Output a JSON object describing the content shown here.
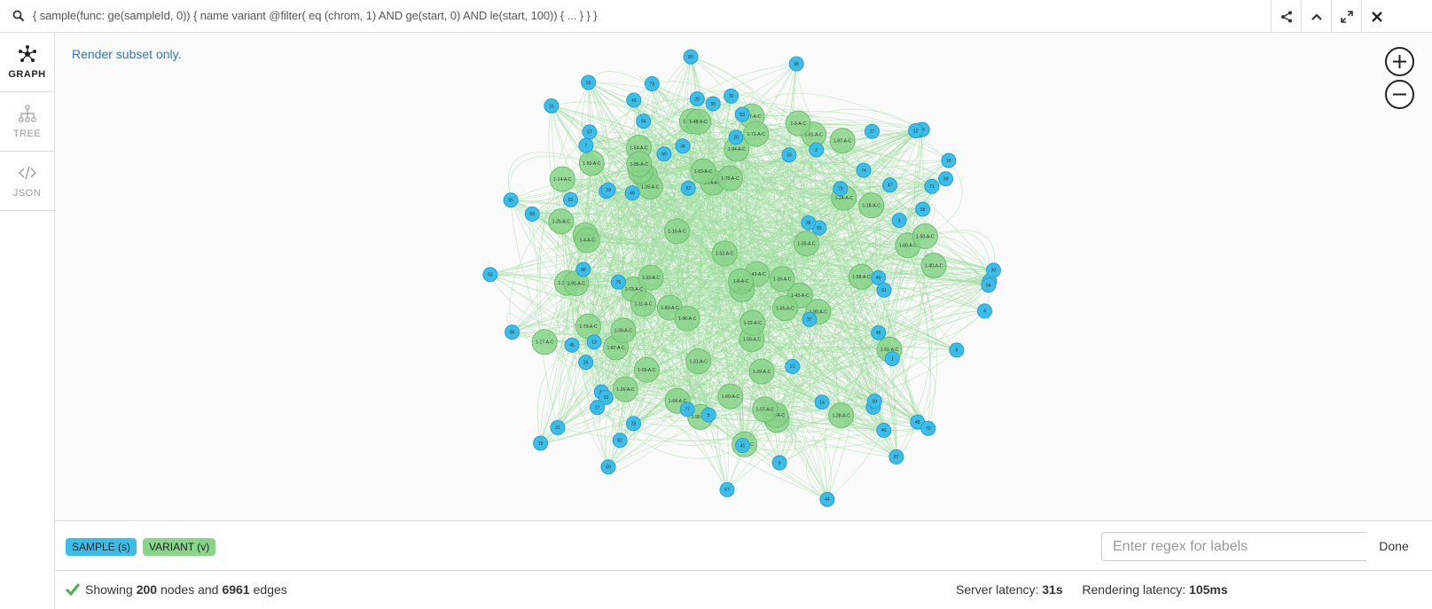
{
  "query": {
    "search_icon": "search-icon",
    "text": "{ sample(func: ge(sampleId, 0)) { name variant @filter( eq (chrom, 1) AND ge(start, 0) AND le(start, 100)) { ... } } }",
    "buttons": [
      "share-icon",
      "collapse-icon",
      "expand-icon",
      "close-icon"
    ]
  },
  "sidebar": {
    "tabs": [
      {
        "label": "GRAPH",
        "icon": "graph-icon"
      },
      {
        "label": "TREE",
        "icon": "tree-icon"
      },
      {
        "label": "JSON",
        "icon": "code-icon"
      }
    ]
  },
  "graph": {
    "notice": "Render subset only.",
    "colors": {
      "sample": "#3bbde9",
      "variant": "#88d489",
      "edge": "#9fdc9f"
    },
    "sample_labels": [
      "84",
      "77",
      "25",
      "69",
      "32",
      "43",
      "33",
      "31",
      "62",
      "56",
      "39",
      "66",
      "71",
      "57",
      "18",
      "24",
      "2",
      "14",
      "45",
      "58",
      "89",
      "46",
      "60",
      "13",
      "65",
      "19",
      "50",
      "88",
      "26",
      "27",
      "92",
      "11",
      "47",
      "17",
      "7",
      "63",
      "3",
      "34",
      "93",
      "23",
      "98",
      "48",
      "1",
      "21",
      "49",
      "68",
      "86",
      "87",
      "28",
      "54",
      "20",
      "61",
      "37",
      "29",
      "35",
      "99",
      "79",
      "10",
      "59",
      "64",
      "15",
      "4",
      "44",
      "55",
      "5",
      "9",
      "6",
      "73",
      "76",
      "75",
      "40",
      "38",
      "12",
      "30",
      "53",
      "67",
      "74",
      "41"
    ],
    "variant_labels": [
      "1-24-A-C",
      "1-26-A-C",
      "1-74-A-C",
      "1-93-A-C",
      "1-29-A-C",
      "1-40-A-C",
      "1-53-A-C",
      "1-30-A-C",
      "1-10-A-C",
      "1-38-A-C",
      "1-67-A-C",
      "1-73-A-C",
      "1-11-A-C",
      "1-21-A-C",
      "1-32-A-C",
      "1-75-A-C",
      "1-52-A-C",
      "1-64-A-C",
      "1-89-A-C",
      "1-31-A-C",
      "1-15-A-C",
      "1-51-A-C",
      "1-61-A-C",
      "1-18-A-C",
      "1-43-A-C",
      "1-84-A-C",
      "1-78-A-C",
      "1-42-A-C",
      "1-65-A-C",
      "1-82-A-C",
      "1-14-A-C",
      "1-56-A-C",
      "1-99-A-C",
      "1-80-A-C",
      "1-58-A-C",
      "1-54-A-C",
      "1-87-A-C",
      "1-90-A-C",
      "1-3-A-C",
      "1-28-A-C",
      "1-33-A-C",
      "1-57-A-C",
      "1-22-A-C",
      "1-95-A-C",
      "1-4-A-C",
      "1-16-A-C",
      "1-39-A-C",
      "1-8-A-C",
      "1-83-A-C",
      "1-23-A-C",
      "1-71-A-C",
      "1-17-A-C",
      "1-60-A-C",
      "1-41-A-C",
      "1-69-A-C",
      "1-91-A-C",
      "1-25-A-C",
      "1-86-A-C",
      "1-48-A-C",
      "1-97-A-C",
      "1-70-A-C",
      "1-50-A-C",
      "1-96-A-C"
    ]
  },
  "zoom": {
    "in": "zoom-in-icon",
    "out": "zoom-out-icon"
  },
  "legend": {
    "sample": "SAMPLE (s)",
    "variant": "VARIANT (v)",
    "regex_placeholder": "Enter regex for labels",
    "done": "Done"
  },
  "status": {
    "prefix": "Showing",
    "nodes": "200",
    "nodes_word": "nodes and",
    "edges": "6961",
    "edges_word": "edges",
    "server_label": "Server latency:",
    "server_value": "31s",
    "render_label": "Rendering latency:",
    "render_value": "105ms"
  }
}
